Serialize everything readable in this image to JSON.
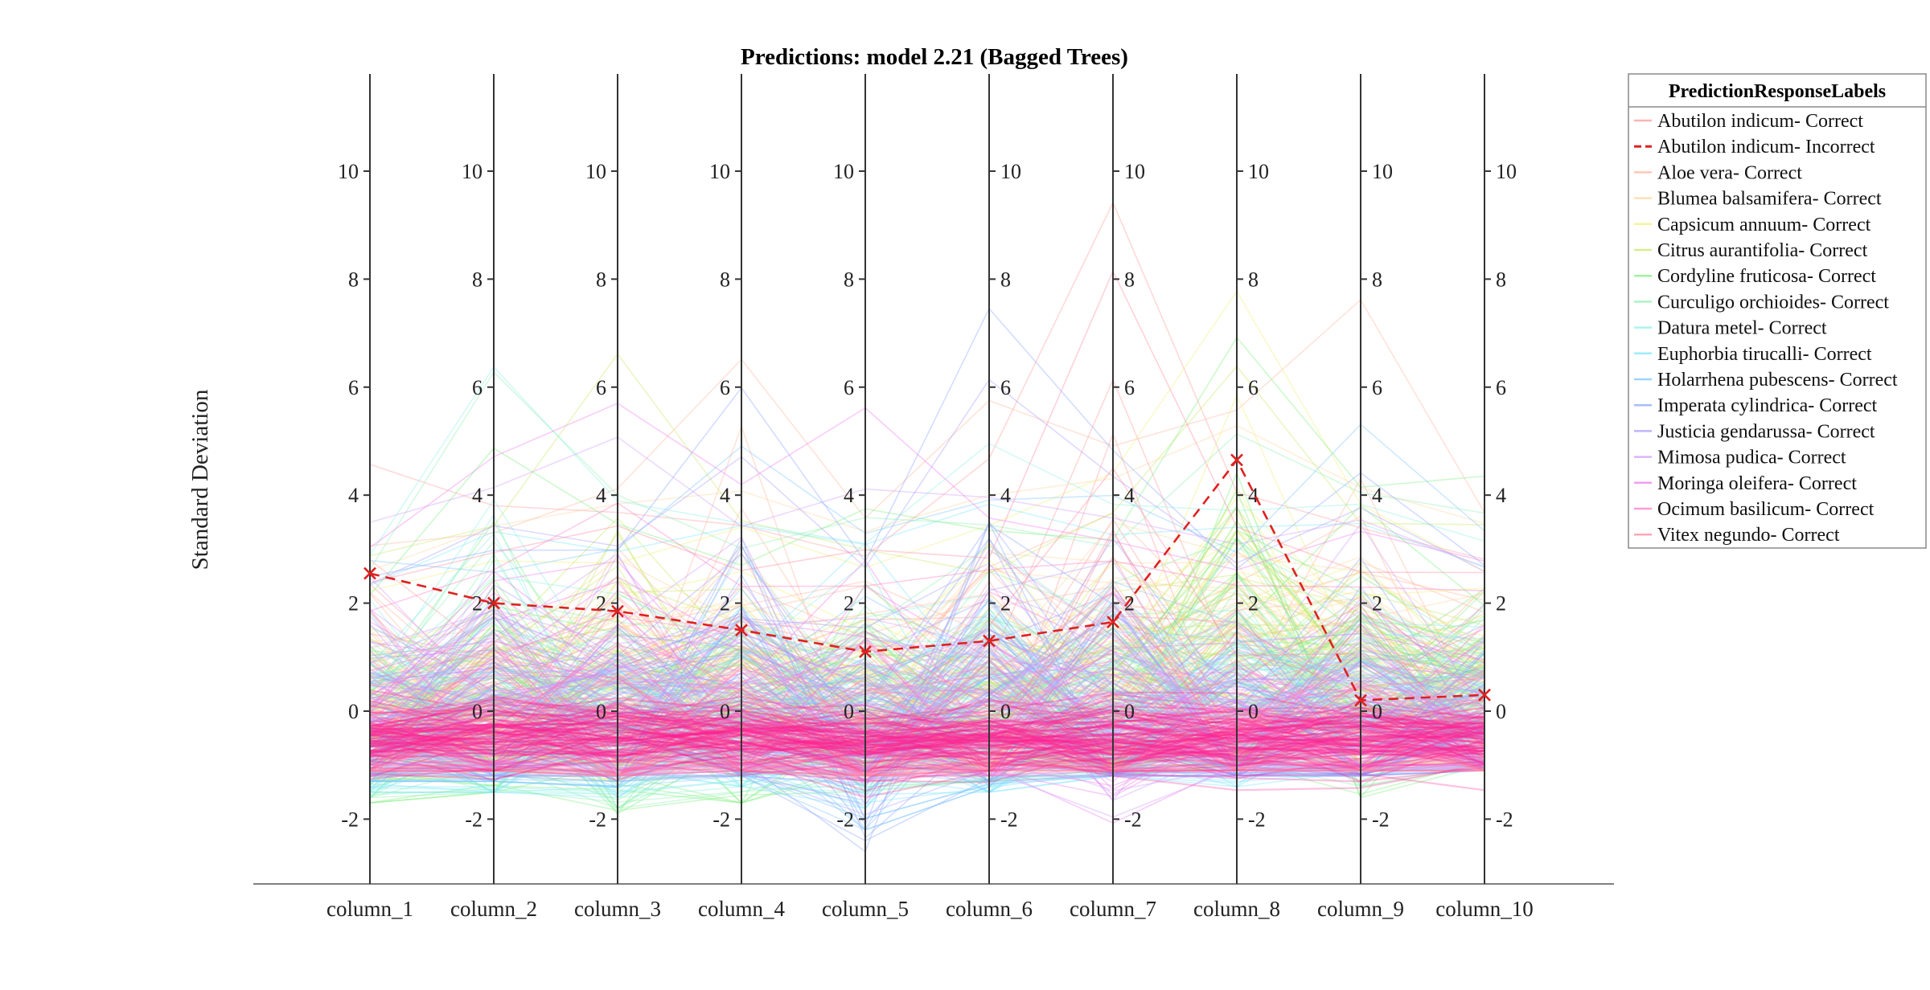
{
  "chart_data": {
    "type": "line",
    "title": "Predictions: model 2.21 (Bagged Trees)",
    "xlabel": "",
    "ylabel": "Standard Deviation",
    "categories": [
      "column_1",
      "column_2",
      "column_3",
      "column_4",
      "column_5",
      "column_6",
      "column_7",
      "column_8",
      "column_9",
      "column_10"
    ],
    "ylim": [
      -3.2,
      11.8
    ],
    "yticks": [
      -2,
      0,
      2,
      4,
      6,
      8,
      10
    ],
    "ytick_labels": [
      "-2",
      "0",
      "2",
      "4",
      "6",
      "8",
      "10"
    ],
    "grid": false,
    "legend_position": "top-right outside",
    "legend_title": "PredictionResponseLabels",
    "series": [
      {
        "name": "Abutilon indicum- Correct",
        "color": "#ff9a9a",
        "style": "solid",
        "mean": [
          -0.3,
          -0.25,
          -0.3,
          -0.2,
          -0.3,
          -0.35,
          -0.4,
          -0.35,
          -0.3,
          -0.3
        ],
        "upper": [
          4.8,
          4.0,
          4.2,
          3.5,
          3.0,
          4.8,
          9.8,
          4.5,
          3.5,
          3.2
        ],
        "lower": [
          -1.2,
          -1.1,
          -1.2,
          -1.0,
          -1.3,
          -1.1,
          -1.0,
          -1.0,
          -1.0,
          -1.0
        ]
      },
      {
        "name": "Abutilon indicum- Incorrect",
        "color": "#e02020",
        "style": "dashed",
        "values": [
          2.55,
          2.0,
          1.85,
          1.5,
          1.1,
          1.3,
          1.65,
          4.65,
          0.2,
          0.3
        ]
      },
      {
        "name": "Aloe vera- Correct",
        "color": "#ffb59a",
        "style": "solid",
        "mean": [
          0.0,
          0.1,
          0.2,
          0.3,
          0.1,
          0.3,
          0.6,
          1.0,
          0.8,
          0.2
        ],
        "upper": [
          3.5,
          3.8,
          4.5,
          6.8,
          4.0,
          6.0,
          5.0,
          6.5,
          8.1,
          4.0
        ],
        "lower": [
          -1.0,
          -1.0,
          -1.0,
          -1.0,
          -1.2,
          -1.0,
          -1.0,
          -1.0,
          -1.0,
          -1.0
        ]
      },
      {
        "name": "Blumea balsamifera- Correct",
        "color": "#ffd59a",
        "style": "solid",
        "mean": [
          0.3,
          0.2,
          0.5,
          0.6,
          0.3,
          0.4,
          0.8,
          1.5,
          0.6,
          0.3
        ],
        "upper": [
          3.0,
          3.5,
          4.0,
          4.5,
          3.5,
          4.0,
          5.0,
          6.0,
          4.5,
          3.5
        ],
        "lower": [
          -1.0,
          -1.0,
          -1.0,
          -1.0,
          -1.0,
          -1.0,
          -1.0,
          -0.8,
          -1.0,
          -1.0
        ]
      },
      {
        "name": "Capsicum annuum- Correct",
        "color": "#f0f078",
        "style": "solid",
        "mean": [
          0.2,
          0.3,
          0.4,
          0.5,
          0.3,
          0.4,
          0.7,
          1.8,
          0.7,
          0.4
        ],
        "upper": [
          2.5,
          3.0,
          3.0,
          3.5,
          3.0,
          3.5,
          4.5,
          8.0,
          4.0,
          3.0
        ],
        "lower": [
          -1.0,
          -1.0,
          -1.0,
          -1.0,
          -1.0,
          -1.0,
          -1.0,
          -0.8,
          -1.0,
          -1.0
        ]
      },
      {
        "name": "Citrus aurantifolia- Correct",
        "color": "#c8e864",
        "style": "solid",
        "mean": [
          0.1,
          0.3,
          0.5,
          0.6,
          0.4,
          0.3,
          0.5,
          1.5,
          0.8,
          0.6
        ],
        "upper": [
          3.0,
          3.5,
          6.8,
          4.0,
          3.5,
          3.0,
          4.0,
          7.0,
          4.0,
          3.5
        ],
        "lower": [
          -1.3,
          -1.2,
          -1.3,
          -1.2,
          -1.2,
          -1.1,
          -1.0,
          -0.8,
          -1.0,
          -1.0
        ]
      },
      {
        "name": "Cordyline fruticosa- Correct",
        "color": "#7cf07c",
        "style": "solid",
        "mean": [
          -0.6,
          -0.3,
          -0.5,
          -0.4,
          0.0,
          -0.4,
          -0.3,
          1.2,
          0.4,
          0.8
        ],
        "upper": [
          2.5,
          5.3,
          3.5,
          3.0,
          4.2,
          3.5,
          3.5,
          7.5,
          4.5,
          4.7
        ],
        "lower": [
          -1.7,
          -1.5,
          -1.9,
          -1.7,
          -1.5,
          -1.3,
          -1.2,
          -1.0,
          -1.6,
          -1.0
        ]
      },
      {
        "name": "Curculigo orchioides- Correct",
        "color": "#8ef0b0",
        "style": "solid",
        "mean": [
          -0.4,
          0.0,
          -0.2,
          -0.1,
          0.2,
          0.0,
          0.0,
          0.8,
          0.5,
          0.6
        ],
        "upper": [
          3.0,
          7.0,
          4.5,
          3.5,
          4.0,
          4.0,
          3.5,
          5.5,
          4.5,
          4.0
        ],
        "lower": [
          -1.6,
          -1.5,
          -1.8,
          -1.5,
          -1.4,
          -1.3,
          -1.2,
          -1.0,
          -1.4,
          -1.0
        ]
      },
      {
        "name": "Datura metel- Correct",
        "color": "#8ef0e6",
        "style": "solid",
        "mean": [
          -0.3,
          0.4,
          0.0,
          0.0,
          0.2,
          0.2,
          0.1,
          0.2,
          0.4,
          0.4
        ],
        "upper": [
          3.0,
          7.0,
          4.0,
          3.5,
          3.5,
          5.0,
          4.0,
          4.0,
          4.0,
          3.5
        ],
        "lower": [
          -1.5,
          -1.5,
          -1.6,
          -1.4,
          -1.5,
          -1.4,
          -1.2,
          -1.0,
          -1.2,
          -1.0
        ]
      },
      {
        "name": "Euphorbia tirucalli- Correct",
        "color": "#7ce6ff",
        "style": "solid",
        "mean": [
          -0.5,
          -0.4,
          -0.5,
          -0.3,
          -0.4,
          -0.3,
          -0.4,
          -0.3,
          -0.2,
          -0.1
        ],
        "upper": [
          2.5,
          3.5,
          3.0,
          3.5,
          3.5,
          4.5,
          3.5,
          3.5,
          4.0,
          3.0
        ],
        "lower": [
          -1.5,
          -1.5,
          -1.6,
          -1.4,
          -1.8,
          -1.5,
          -1.2,
          -1.4,
          -1.2,
          -1.0
        ]
      },
      {
        "name": "Holarrhena pubescens- Correct",
        "color": "#7cc4ff",
        "style": "solid",
        "mean": [
          -0.3,
          -0.2,
          -0.3,
          0.2,
          -0.5,
          -0.2,
          -0.3,
          -0.4,
          -0.2,
          0.0
        ],
        "upper": [
          3.0,
          3.0,
          3.5,
          5.0,
          3.5,
          4.5,
          4.0,
          3.0,
          6.0,
          3.5
        ],
        "lower": [
          -1.3,
          -1.3,
          -1.4,
          -1.2,
          -2.2,
          -1.4,
          -1.2,
          -1.2,
          -1.2,
          -1.1
        ]
      },
      {
        "name": "Imperata cylindrica- Correct",
        "color": "#8ca6ff",
        "style": "solid",
        "mean": [
          -0.2,
          -0.1,
          -0.1,
          0.5,
          -0.6,
          0.0,
          -0.3,
          -0.5,
          0.0,
          -0.1
        ],
        "upper": [
          2.5,
          3.0,
          3.0,
          6.5,
          3.0,
          8.0,
          5.5,
          3.0,
          5.0,
          3.0
        ],
        "lower": [
          -1.2,
          -1.2,
          -1.3,
          -1.2,
          -2.6,
          -1.3,
          -1.2,
          -1.2,
          -1.2,
          -1.1
        ]
      },
      {
        "name": "Justicia gendarussa- Correct",
        "color": "#a89cff",
        "style": "solid",
        "mean": [
          -0.1,
          0.0,
          0.0,
          0.3,
          -0.4,
          0.1,
          -0.2,
          -0.4,
          -0.1,
          -0.2
        ],
        "upper": [
          2.5,
          3.5,
          3.5,
          5.0,
          3.0,
          6.5,
          4.5,
          3.0,
          4.0,
          3.0
        ],
        "lower": [
          -1.2,
          -1.2,
          -1.2,
          -1.2,
          -2.0,
          -1.2,
          -1.2,
          -1.2,
          -1.2,
          -1.1
        ]
      },
      {
        "name": "Mimosa pudica- Correct",
        "color": "#d09cff",
        "style": "solid",
        "mean": [
          0.1,
          0.1,
          0.2,
          0.0,
          0.0,
          0.0,
          -0.1,
          -0.2,
          -0.1,
          -0.2
        ],
        "upper": [
          3.5,
          4.5,
          5.5,
          4.0,
          4.5,
          4.0,
          4.0,
          3.5,
          4.0,
          3.0
        ],
        "lower": [
          -1.1,
          -1.1,
          -1.2,
          -1.1,
          -1.3,
          -1.2,
          -2.0,
          -1.1,
          -1.1,
          -1.0
        ]
      },
      {
        "name": "Moringa oleifera- Correct",
        "color": "#f07cf0",
        "style": "solid",
        "mean": [
          0.2,
          0.4,
          0.5,
          0.1,
          0.3,
          0.0,
          -0.2,
          -0.2,
          -0.2,
          -0.3
        ],
        "upper": [
          3.5,
          5.0,
          5.8,
          4.5,
          5.8,
          4.0,
          3.5,
          3.0,
          3.5,
          3.0
        ],
        "lower": [
          -1.0,
          -1.0,
          -1.1,
          -1.0,
          -1.2,
          -1.1,
          -2.1,
          -1.0,
          -1.0,
          -1.0
        ]
      },
      {
        "name": "Ocimum basilicum- Correct",
        "color": "#ff7cc8",
        "style": "solid",
        "mean": [
          -0.5,
          -0.5,
          -0.6,
          -0.6,
          -0.6,
          -0.6,
          -0.6,
          -0.6,
          -0.6,
          -0.6
        ],
        "upper": [
          2.0,
          3.0,
          4.5,
          2.5,
          2.5,
          3.0,
          3.0,
          2.5,
          2.5,
          2.5
        ],
        "lower": [
          -1.1,
          -1.1,
          -1.2,
          -1.1,
          -1.2,
          -1.2,
          -1.1,
          -1.1,
          -1.1,
          -1.1
        ]
      },
      {
        "name": "Vitex negundo- Correct",
        "color": "#ff8aa0",
        "style": "solid",
        "mean": [
          -0.4,
          -0.3,
          -0.4,
          -0.3,
          -0.5,
          -0.4,
          -0.5,
          -0.5,
          -0.5,
          -0.4
        ],
        "upper": [
          2.5,
          3.0,
          3.5,
          3.0,
          3.0,
          3.0,
          8.9,
          3.5,
          3.0,
          3.0
        ],
        "lower": [
          -1.1,
          -1.1,
          -1.2,
          -1.1,
          -1.2,
          -1.1,
          -1.1,
          -1.1,
          -1.1,
          -1.1
        ]
      }
    ],
    "dense_core": {
      "color": "#ff2090",
      "mean": [
        -0.45,
        -0.4,
        -0.5,
        -0.45,
        -0.55,
        -0.5,
        -0.55,
        -0.5,
        -0.5,
        -0.5
      ],
      "spread": 0.55
    },
    "lines_per_series": 26
  }
}
